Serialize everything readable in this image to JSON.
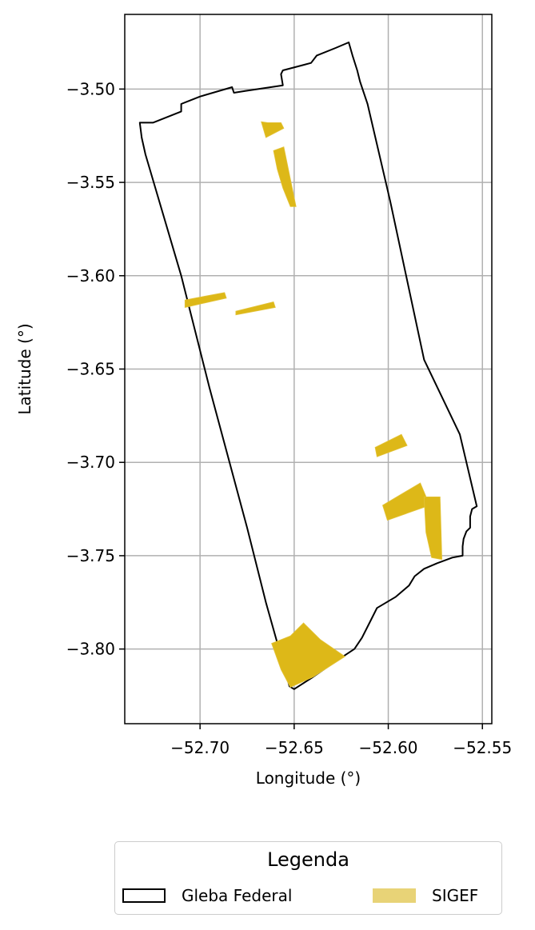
{
  "chart_data": {
    "type": "map",
    "xlabel": "Longitude (°)",
    "ylabel": "Latitude (°)",
    "xlim": [
      -52.74,
      -52.545
    ],
    "ylim": [
      -3.84,
      -3.46
    ],
    "xticks": [
      -52.7,
      -52.65,
      -52.6,
      -52.55
    ],
    "yticks": [
      -3.5,
      -3.55,
      -3.6,
      -3.65,
      -3.7,
      -3.75,
      -3.8
    ],
    "xtick_labels": [
      "−52.70",
      "−52.65",
      "−52.60",
      "−52.55"
    ],
    "ytick_labels": [
      "−3.50",
      "−3.55",
      "−3.60",
      "−3.65",
      "−3.70",
      "−3.75",
      "−3.80"
    ],
    "grid": true,
    "legend": {
      "title": "Legenda",
      "placement": "bottom-center",
      "entries": [
        {
          "label": "Gleba Federal",
          "style": "outline",
          "color": "#000000"
        },
        {
          "label": "SIGEF",
          "style": "fill",
          "color": "#e8d377"
        }
      ]
    },
    "gleba_federal": [
      [
        -52.732,
        -3.518
      ],
      [
        -52.731,
        -3.526
      ],
      [
        -52.729,
        -3.535
      ],
      [
        -52.71,
        -3.6
      ],
      [
        -52.695,
        -3.66
      ],
      [
        -52.675,
        -3.735
      ],
      [
        -52.665,
        -3.775
      ],
      [
        -52.6525,
        -3.82
      ],
      [
        -52.65,
        -3.8215
      ],
      [
        -52.64,
        -3.815
      ],
      [
        -52.63,
        -3.808
      ],
      [
        -52.618,
        -3.8
      ],
      [
        -52.614,
        -3.794
      ],
      [
        -52.61,
        -3.786
      ],
      [
        -52.606,
        -3.778
      ],
      [
        -52.596,
        -3.772
      ],
      [
        -52.589,
        -3.766
      ],
      [
        -52.586,
        -3.761
      ],
      [
        -52.581,
        -3.757
      ],
      [
        -52.574,
        -3.754
      ],
      [
        -52.566,
        -3.751
      ],
      [
        -52.5605,
        -3.75
      ],
      [
        -52.5605,
        -3.745
      ],
      [
        -52.56,
        -3.741
      ],
      [
        -52.5585,
        -3.737
      ],
      [
        -52.5565,
        -3.735
      ],
      [
        -52.5565,
        -3.729
      ],
      [
        -52.5555,
        -3.725
      ],
      [
        -52.553,
        -3.7235
      ],
      [
        -52.562,
        -3.685
      ],
      [
        -52.581,
        -3.645
      ],
      [
        -52.599,
        -3.56
      ],
      [
        -52.611,
        -3.508
      ],
      [
        -52.615,
        -3.496
      ],
      [
        -52.6165,
        -3.49
      ],
      [
        -52.619,
        -3.482
      ],
      [
        -52.621,
        -3.475
      ],
      [
        -52.628,
        -3.478
      ],
      [
        -52.638,
        -3.482
      ],
      [
        -52.641,
        -3.486
      ],
      [
        -52.656,
        -3.49
      ],
      [
        -52.657,
        -3.492
      ],
      [
        -52.656,
        -3.498
      ],
      [
        -52.676,
        -3.501
      ],
      [
        -52.682,
        -3.502
      ],
      [
        -52.683,
        -3.499
      ],
      [
        -52.7,
        -3.504
      ],
      [
        -52.71,
        -3.508
      ],
      [
        -52.71,
        -3.512
      ],
      [
        -52.725,
        -3.518
      ],
      [
        -52.732,
        -3.518
      ]
    ],
    "sigef": [
      [
        [
          -52.664,
          -3.518
        ],
        [
          -52.657,
          -3.518
        ],
        [
          -52.6555,
          -3.521
        ],
        [
          -52.665,
          -3.526
        ],
        [
          -52.6675,
          -3.5175
        ]
      ],
      [
        [
          -52.661,
          -3.533
        ],
        [
          -52.6555,
          -3.531
        ],
        [
          -52.649,
          -3.563
        ],
        [
          -52.652,
          -3.563
        ],
        [
          -52.656,
          -3.553
        ],
        [
          -52.659,
          -3.543
        ]
      ],
      [
        [
          -52.708,
          -3.613
        ],
        [
          -52.687,
          -3.609
        ],
        [
          -52.686,
          -3.612
        ],
        [
          -52.708,
          -3.617
        ]
      ],
      [
        [
          -52.681,
          -3.619
        ],
        [
          -52.661,
          -3.614
        ],
        [
          -52.66,
          -3.617
        ],
        [
          -52.681,
          -3.621
        ]
      ],
      [
        [
          -52.607,
          -3.692
        ],
        [
          -52.593,
          -3.685
        ],
        [
          -52.59,
          -3.691
        ],
        [
          -52.606,
          -3.697
        ]
      ],
      [
        [
          -52.603,
          -3.723
        ],
        [
          -52.583,
          -3.711
        ],
        [
          -52.578,
          -3.723
        ],
        [
          -52.6005,
          -3.731
        ]
      ],
      [
        [
          -52.581,
          -3.7185
        ],
        [
          -52.5725,
          -3.7185
        ],
        [
          -52.5715,
          -3.752
        ],
        [
          -52.577,
          -3.751
        ],
        [
          -52.58,
          -3.7375
        ]
      ],
      [
        [
          -52.662,
          -3.797
        ],
        [
          -52.652,
          -3.793
        ],
        [
          -52.645,
          -3.786
        ],
        [
          -52.636,
          -3.795
        ],
        [
          -52.623,
          -3.804
        ],
        [
          -52.64,
          -3.815
        ],
        [
          -52.652,
          -3.8205
        ],
        [
          -52.657,
          -3.811
        ]
      ]
    ]
  }
}
